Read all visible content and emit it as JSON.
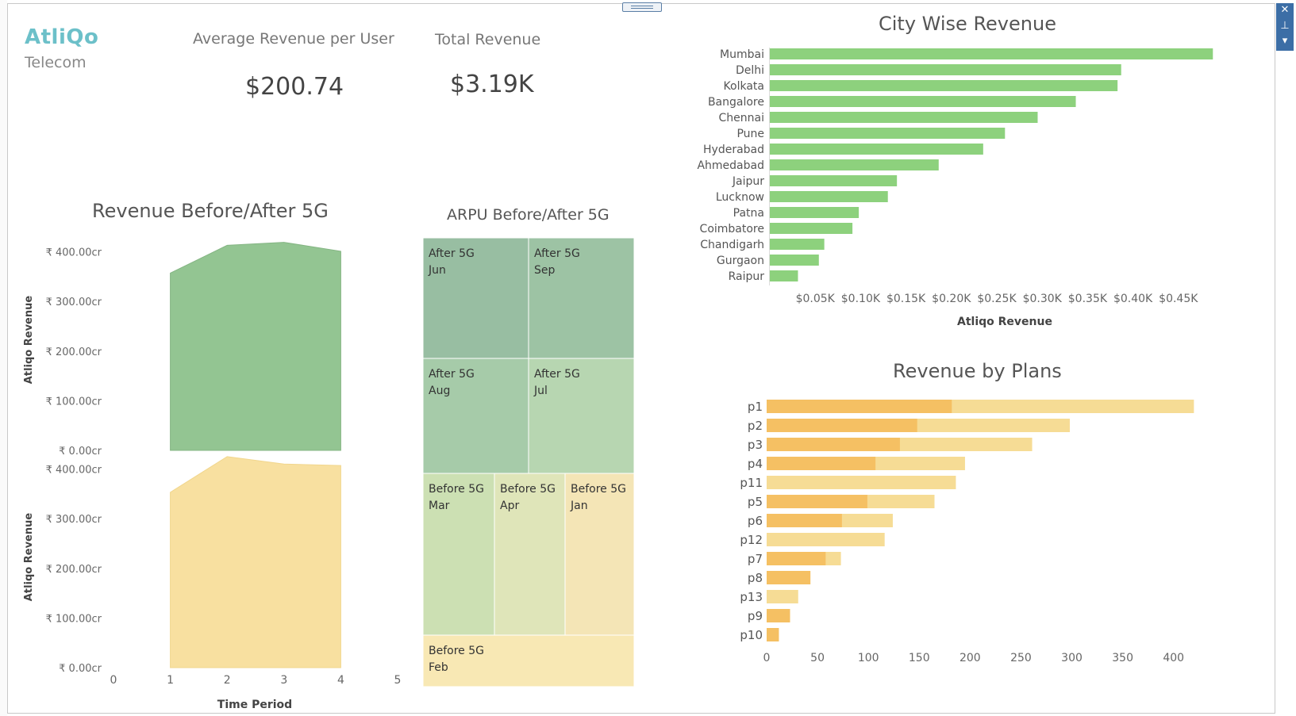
{
  "brand": {
    "name": "AtliQo",
    "subtitle": "Telecom"
  },
  "kpis": {
    "arpu": {
      "label": "Average Revenue per User",
      "value": "$200.74"
    },
    "total_revenue": {
      "label": "Total Revenue",
      "value": "$3.19K"
    }
  },
  "colors": {
    "green": "#93c592",
    "yellow": "#f8e0a0",
    "bar_green": "#8dd17d",
    "plan_dark": "#f5c063",
    "plan_light": "#f6dc95"
  },
  "window_controls": {
    "close": "✕",
    "pin": "⊥",
    "menu": "▾"
  },
  "chart_data": [
    {
      "id": "revenue_5g",
      "type": "area",
      "title": "Revenue Before/After 5G",
      "xlabel": "Time Period",
      "ylabel": "Atliqo Revenue",
      "x_ticks": [
        0,
        1,
        2,
        3,
        4,
        5
      ],
      "y_ticks": [
        0,
        100,
        200,
        300,
        400
      ],
      "y_tick_labels": [
        "₹ 0.00cr",
        "₹ 100.00cr",
        "₹ 200.00cr",
        "₹ 300.00cr",
        "₹ 400.00cr"
      ],
      "xlim": [
        0,
        5
      ],
      "ylim": [
        0,
        420
      ],
      "series": [
        {
          "x": [
            1,
            2,
            3,
            4
          ],
          "values": [
            357,
            413,
            419,
            401
          ],
          "color": "#93c592"
        },
        {
          "x": [
            1,
            2,
            3,
            4
          ],
          "values": [
            353,
            425,
            410,
            407
          ],
          "color": "#f8e0a0"
        }
      ]
    },
    {
      "id": "arpu_5g",
      "type": "treemap",
      "title": "ARPU Before/After 5G",
      "cells": [
        {
          "line1": "After 5G",
          "line2": "Jun",
          "color": "#98bea2"
        },
        {
          "line1": "After 5G",
          "line2": "Sep",
          "color": "#9dc3a4"
        },
        {
          "line1": "After 5G",
          "line2": "Aug",
          "color": "#a6cba9"
        },
        {
          "line1": "After 5G",
          "line2": "Jul",
          "color": "#b7d6b1"
        },
        {
          "line1": "Before 5G",
          "line2": "Mar",
          "color": "#cce0b3"
        },
        {
          "line1": "Before 5G",
          "line2": "Apr",
          "color": "#dfe5b9"
        },
        {
          "line1": "Before 5G",
          "line2": "Jan",
          "color": "#f4e5b6"
        },
        {
          "line1": "Before 5G",
          "line2": "Feb",
          "color": "#f8e8b4"
        }
      ]
    },
    {
      "id": "city_revenue",
      "type": "bar",
      "orientation": "horizontal",
      "title": "City Wise Revenue",
      "xlabel": "Atliqo Revenue",
      "categories": [
        "Mumbai",
        "Delhi",
        "Kolkata",
        "Bangalore",
        "Chennai",
        "Pune",
        "Hyderabad",
        "Ahmedabad",
        "Jaipur",
        "Lucknow",
        "Patna",
        "Coimbatore",
        "Chandigarh",
        "Gurgaon",
        "Raipur"
      ],
      "values": [
        0.488,
        0.387,
        0.383,
        0.337,
        0.295,
        0.259,
        0.235,
        0.186,
        0.14,
        0.13,
        0.098,
        0.091,
        0.06,
        0.054,
        0.031
      ],
      "x_ticks": [
        0.05,
        0.1,
        0.15,
        0.2,
        0.25,
        0.3,
        0.35,
        0.4,
        0.45
      ],
      "x_tick_labels": [
        "$0.05K",
        "$0.10K",
        "$0.15K",
        "$0.20K",
        "$0.25K",
        "$0.30K",
        "$0.35K",
        "$0.40K",
        "$0.45K"
      ],
      "xlim": [
        0,
        0.5
      ]
    },
    {
      "id": "plan_revenue",
      "type": "bar",
      "orientation": "horizontal",
      "title": "Revenue by Plans",
      "categories": [
        "p1",
        "p2",
        "p3",
        "p4",
        "p11",
        "p5",
        "p6",
        "p12",
        "p7",
        "p8",
        "p13",
        "p9",
        "p10"
      ],
      "series": [
        {
          "values": [
            182,
            148,
            131,
            107,
            0,
            99,
            74,
            0,
            58,
            43,
            0,
            23,
            12
          ],
          "color": "#f5c063"
        },
        {
          "values": [
            420,
            298,
            261,
            195,
            186,
            165,
            124,
            116,
            73,
            43,
            31,
            23,
            12
          ],
          "color": "#f6dc95"
        }
      ],
      "x_ticks": [
        0,
        50,
        100,
        150,
        200,
        250,
        300,
        350,
        400
      ],
      "xlim": [
        0,
        440
      ]
    }
  ]
}
